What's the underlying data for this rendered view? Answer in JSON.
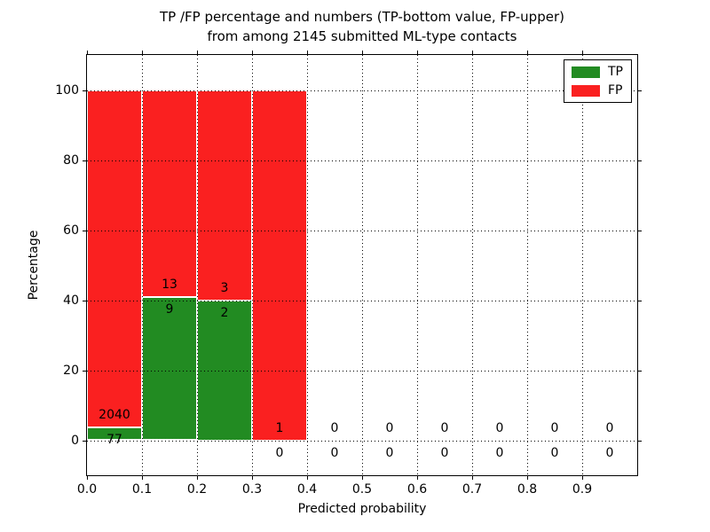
{
  "figure": {
    "title_line1": "TP /FP percentage and numbers (TP-bottom value, FP-upper)",
    "title_line2": "from among 2145 submitted ML-type contacts"
  },
  "chart_data": {
    "type": "bar",
    "subtype": "stacked-percentage-histogram",
    "title": "TP /FP percentage and numbers (TP-bottom value, FP-upper)\nfrom among 2145 submitted ML-type contacts",
    "total_contacts": 2145,
    "xlabel": "Predicted probability",
    "ylabel": "Percentage",
    "xlim": [
      0.0,
      1.0
    ],
    "ylim": [
      -10,
      110
    ],
    "xticks": [
      "0.0",
      "0.1",
      "0.2",
      "0.3",
      "0.4",
      "0.5",
      "0.6",
      "0.7",
      "0.8",
      "0.9"
    ],
    "xtick_values": [
      0.0,
      0.1,
      0.2,
      0.3,
      0.4,
      0.5,
      0.6,
      0.7,
      0.8,
      0.9
    ],
    "yticks": [
      "0",
      "20",
      "40",
      "60",
      "80",
      "100"
    ],
    "ytick_values": [
      0,
      20,
      40,
      60,
      80,
      100
    ],
    "grid": "dotted",
    "bins": {
      "start": 0.0,
      "width": 0.1,
      "count": 10
    },
    "series": [
      {
        "name": "TP",
        "color": "#228b22",
        "counts": [
          77,
          9,
          2,
          0,
          0,
          0,
          0,
          0,
          0,
          0
        ]
      },
      {
        "name": "FP",
        "color": "#fa2020",
        "counts": [
          2040,
          13,
          3,
          1,
          0,
          0,
          0,
          0,
          0,
          0
        ]
      }
    ],
    "tp_pct_of_bin": [
      3.64,
      40.91,
      40.0,
      0.0,
      0.0,
      0.0,
      0.0,
      0.0,
      0.0,
      0.0
    ],
    "bar_total_pct": 100,
    "legend_position": "upper right",
    "legend": [
      {
        "label": "TP",
        "color": "#228b22"
      },
      {
        "label": "FP",
        "color": "#fa2020"
      }
    ]
  }
}
